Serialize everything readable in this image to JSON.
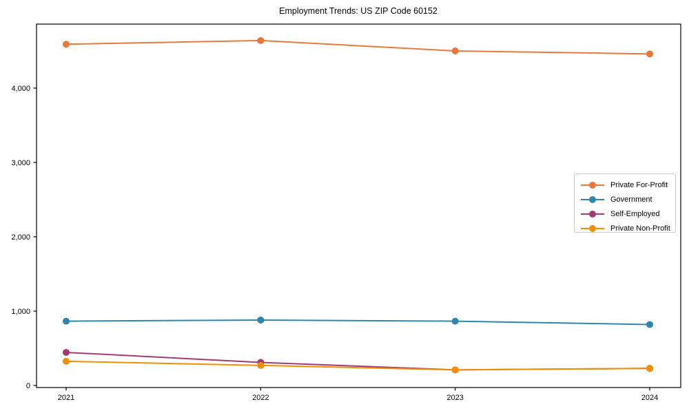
{
  "figure": {
    "title": "Employment Trends: US ZIP Code 60152"
  },
  "chart_data": {
    "type": "line",
    "title": "Employment Trends: US ZIP Code 60152",
    "x": [
      2021,
      2022,
      2023,
      2024
    ],
    "x_tick_labels": [
      "2021",
      "2022",
      "2023",
      "2024"
    ],
    "series": [
      {
        "name": "Private For-Profit",
        "color": "#E8793D",
        "values": [
          4590,
          4640,
          4500,
          4460
        ]
      },
      {
        "name": "Government",
        "color": "#2E86AB",
        "values": [
          865,
          880,
          865,
          820
        ]
      },
      {
        "name": "Self-Employed",
        "color": "#A23B72",
        "values": [
          445,
          310,
          210,
          230
        ]
      },
      {
        "name": "Private Non-Profit",
        "color": "#F18F01",
        "values": [
          325,
          270,
          210,
          230
        ]
      }
    ],
    "xlabel": "",
    "ylabel": "",
    "ylim": [
      0,
      4860
    ],
    "yticks": [
      0,
      1000,
      2000,
      3000,
      4000
    ],
    "ytick_labels": [
      "0",
      "1,000",
      "2,000",
      "3,000",
      "4,000"
    ],
    "grid": false,
    "marker": "circle",
    "legend": {
      "position": "right-center",
      "entries": [
        "Private For-Profit",
        "Government",
        "Self-Employed",
        "Private Non-Profit"
      ]
    }
  }
}
